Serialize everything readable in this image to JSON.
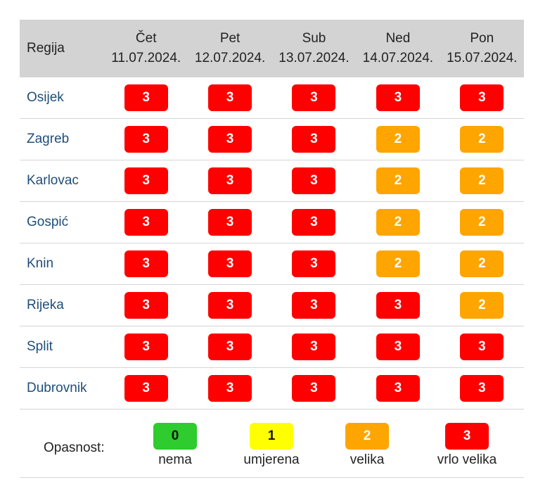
{
  "header": {
    "region_label": "Regija",
    "days": [
      {
        "day": "Čet",
        "date": "11.07.2024."
      },
      {
        "day": "Pet",
        "date": "12.07.2024."
      },
      {
        "day": "Sub",
        "date": "13.07.2024."
      },
      {
        "day": "Ned",
        "date": "14.07.2024."
      },
      {
        "day": "Pon",
        "date": "15.07.2024."
      }
    ]
  },
  "rows": [
    {
      "city": "Osijek",
      "levels": [
        "3",
        "3",
        "3",
        "3",
        "3"
      ]
    },
    {
      "city": "Zagreb",
      "levels": [
        "3",
        "3",
        "3",
        "2",
        "2"
      ]
    },
    {
      "city": "Karlovac",
      "levels": [
        "3",
        "3",
        "3",
        "2",
        "2"
      ]
    },
    {
      "city": "Gospić",
      "levels": [
        "3",
        "3",
        "3",
        "2",
        "2"
      ]
    },
    {
      "city": "Knin",
      "levels": [
        "3",
        "3",
        "3",
        "2",
        "2"
      ]
    },
    {
      "city": "Rijeka",
      "levels": [
        "3",
        "3",
        "3",
        "3",
        "2"
      ]
    },
    {
      "city": "Split",
      "levels": [
        "3",
        "3",
        "3",
        "3",
        "3"
      ]
    },
    {
      "city": "Dubrovnik",
      "levels": [
        "3",
        "3",
        "3",
        "3",
        "3"
      ]
    }
  ],
  "legend": {
    "label": "Opasnost:",
    "items": [
      {
        "value": "0",
        "text": "nema"
      },
      {
        "value": "1",
        "text": "umjerena"
      },
      {
        "value": "2",
        "text": "velika"
      },
      {
        "value": "3",
        "text": "vrlo velika"
      }
    ]
  },
  "colors": {
    "level_0": "#2ecc2e",
    "level_1": "#ffff00",
    "level_2": "#ffa500",
    "level_3": "#ff0000",
    "header_bg": "#d3d3d3",
    "city_link": "#1f4e79"
  }
}
